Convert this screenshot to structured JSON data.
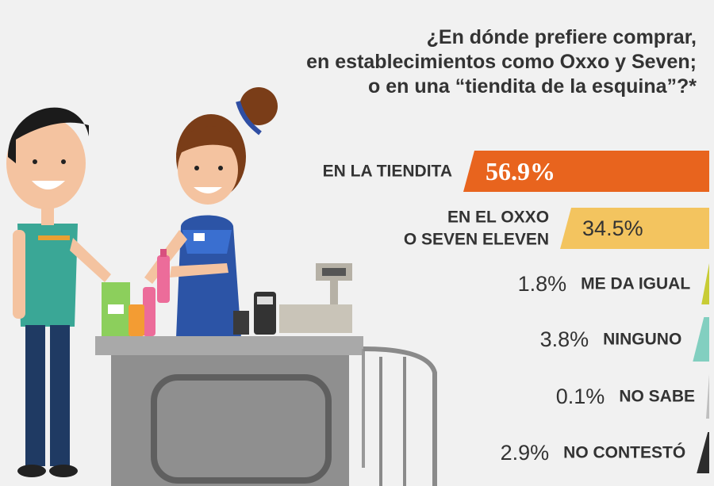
{
  "title_lines": [
    "¿En dónde prefiere comprar,",
    "en establecimientos como Oxxo y Seven;",
    "o en una “tiendita de la esquina”?*"
  ],
  "chart_data": {
    "type": "bar",
    "orientation": "horizontal",
    "unit": "%",
    "categories": [
      [
        "EN LA TIENDITA"
      ],
      [
        "EN EL OXXO",
        "O SEVEN ELEVEN"
      ],
      [
        "ME DA IGUAL"
      ],
      [
        "NINGUNO"
      ],
      [
        "NO SABE"
      ],
      [
        "NO CONTESTÓ"
      ]
    ],
    "values": [
      56.9,
      34.5,
      1.8,
      3.8,
      0.1,
      2.9
    ],
    "value_labels": [
      "56.9%",
      "34.5%",
      "1.8%",
      "3.8%",
      "0.1%",
      "2.9%"
    ],
    "colors": [
      "#e8641e",
      "#f3c45f",
      "#c8cc35",
      "#82cfc0",
      "#bfbfbf",
      "#2d2d2d"
    ],
    "xlim": [
      0,
      56.9
    ],
    "grid": false,
    "legend": "none"
  }
}
